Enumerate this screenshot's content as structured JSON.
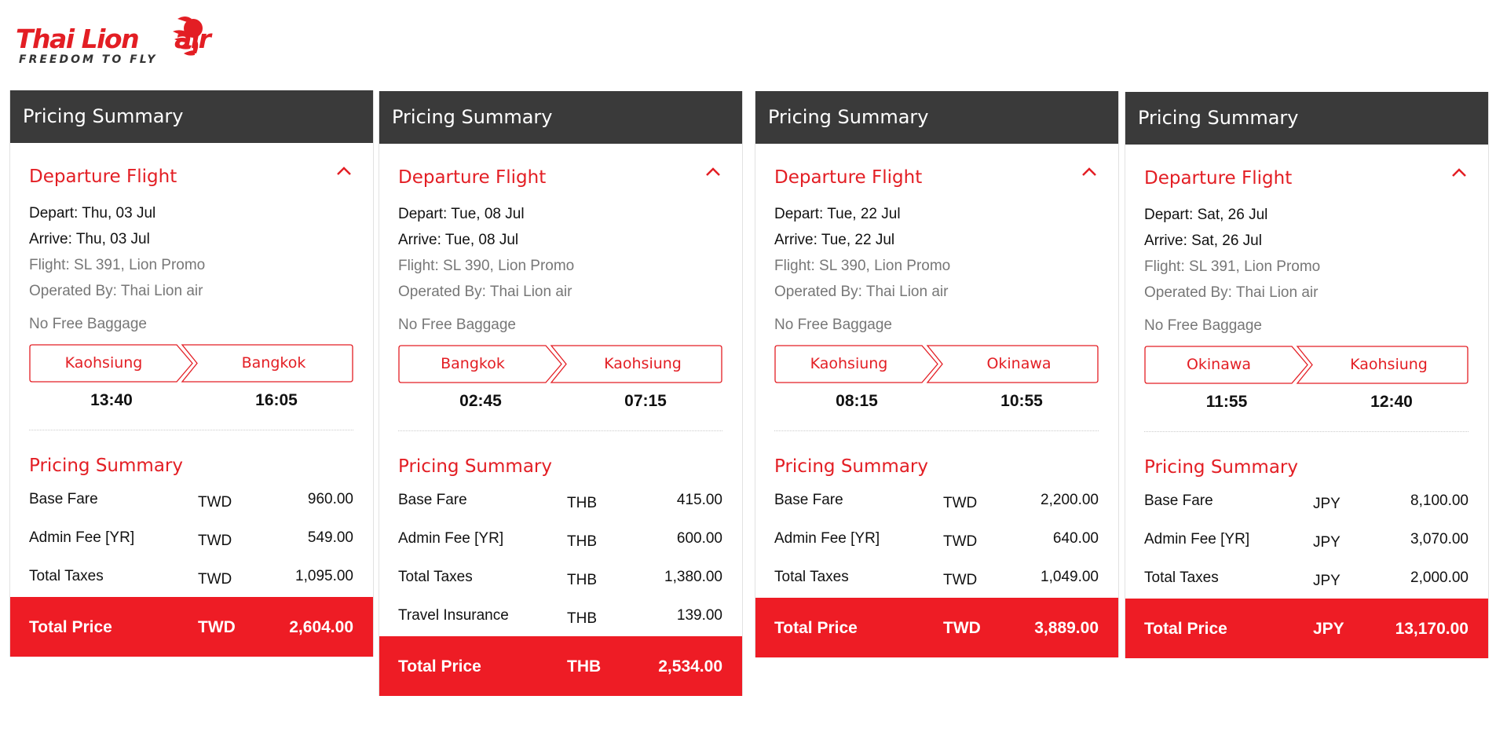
{
  "logo": {
    "brand_left": "Thai Lion",
    "brand_right": "air",
    "tagline": "FREEDOM TO FLY",
    "brand_color": "#e31e24"
  },
  "colors": {
    "accent": "#e31e24",
    "header_bg": "#3a3a3a",
    "total_bg": "#ee1c25"
  },
  "cards": [
    {
      "header": "Pricing Summary",
      "section_title": "Departure Flight",
      "collapse_icon": "chevron-up-icon",
      "depart": "Depart: Thu, 03 Jul",
      "arrive": "Arrive: Thu, 03 Jul",
      "flight": "Flight: SL 391, Lion Promo",
      "operated_by": "Operated By: Thai Lion air",
      "baggage": "No Free Baggage",
      "origin": "Kaohsiung",
      "destination": "Bangkok",
      "depart_time": "13:40",
      "arrive_time": "16:05",
      "pricing_title": "Pricing Summary",
      "rows": [
        {
          "label": "Base Fare",
          "currency": "TWD",
          "amount": "960.00"
        },
        {
          "label": "Admin Fee [YR]",
          "currency": "TWD",
          "amount": "549.00"
        },
        {
          "label": "Total Taxes",
          "currency": "TWD",
          "amount": "1,095.00"
        }
      ],
      "total": {
        "label": "Total Price",
        "currency": "TWD",
        "amount": "2,604.00"
      }
    },
    {
      "header": "Pricing Summary",
      "section_title": "Departure Flight",
      "collapse_icon": "chevron-up-icon",
      "depart": "Depart: Tue, 08 Jul",
      "arrive": "Arrive: Tue, 08 Jul",
      "flight": "Flight: SL 390, Lion Promo",
      "operated_by": "Operated By: Thai Lion air",
      "baggage": "No Free Baggage",
      "origin": "Bangkok",
      "destination": "Kaohsiung",
      "depart_time": "02:45",
      "arrive_time": "07:15",
      "pricing_title": "Pricing Summary",
      "rows": [
        {
          "label": "Base Fare",
          "currency": "THB",
          "amount": "415.00"
        },
        {
          "label": "Admin Fee [YR]",
          "currency": "THB",
          "amount": "600.00"
        },
        {
          "label": "Total Taxes",
          "currency": "THB",
          "amount": "1,380.00"
        },
        {
          "label": "Travel Insurance",
          "currency": "THB",
          "amount": "139.00"
        }
      ],
      "total": {
        "label": "Total Price",
        "currency": "THB",
        "amount": "2,534.00"
      }
    },
    {
      "header": "Pricing Summary",
      "section_title": "Departure Flight",
      "collapse_icon": "chevron-up-icon",
      "depart": "Depart: Tue, 22 Jul",
      "arrive": "Arrive: Tue, 22 Jul",
      "flight": "Flight: SL 390, Lion Promo",
      "operated_by": "Operated By: Thai Lion air",
      "baggage": "No Free Baggage",
      "origin": "Kaohsiung",
      "destination": "Okinawa",
      "depart_time": "08:15",
      "arrive_time": "10:55",
      "pricing_title": "Pricing Summary",
      "rows": [
        {
          "label": "Base Fare",
          "currency": "TWD",
          "amount": "2,200.00"
        },
        {
          "label": "Admin Fee [YR]",
          "currency": "TWD",
          "amount": "640.00"
        },
        {
          "label": "Total Taxes",
          "currency": "TWD",
          "amount": "1,049.00"
        }
      ],
      "total": {
        "label": "Total Price",
        "currency": "TWD",
        "amount": "3,889.00"
      }
    },
    {
      "header": "Pricing Summary",
      "section_title": "Departure Flight",
      "collapse_icon": "chevron-up-icon",
      "depart": "Depart: Sat, 26 Jul",
      "arrive": "Arrive: Sat, 26 Jul",
      "flight": "Flight: SL 391, Lion Promo",
      "operated_by": "Operated By: Thai Lion air",
      "baggage": "No Free Baggage",
      "origin": "Okinawa",
      "destination": "Kaohsiung",
      "depart_time": "11:55",
      "arrive_time": "12:40",
      "pricing_title": "Pricing Summary",
      "rows": [
        {
          "label": "Base Fare",
          "currency": "JPY",
          "amount": "8,100.00"
        },
        {
          "label": "Admin Fee [YR]",
          "currency": "JPY",
          "amount": "3,070.00"
        },
        {
          "label": "Total Taxes",
          "currency": "JPY",
          "amount": "2,000.00"
        }
      ],
      "total": {
        "label": "Total Price",
        "currency": "JPY",
        "amount": "13,170.00"
      }
    }
  ]
}
